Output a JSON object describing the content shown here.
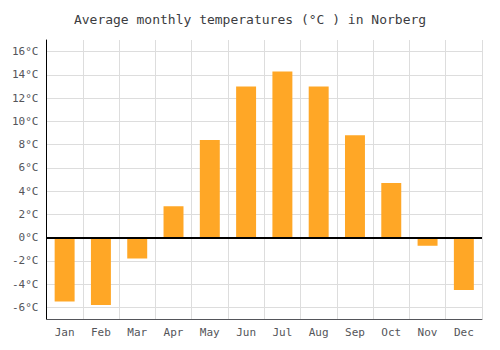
{
  "chart_data": {
    "type": "bar",
    "title": "Average monthly temperatures (°C ) in Norberg",
    "categories": [
      "Jan",
      "Feb",
      "Mar",
      "Apr",
      "May",
      "Jun",
      "Jul",
      "Aug",
      "Sep",
      "Oct",
      "Nov",
      "Dec"
    ],
    "values": [
      -5.5,
      -5.8,
      -1.8,
      2.7,
      8.4,
      13.0,
      14.3,
      13.0,
      8.8,
      4.7,
      -0.7,
      -4.5
    ],
    "color": "#FFA726",
    "ylim": [
      -7,
      17
    ],
    "yticks": [
      {
        "value": -6,
        "label": "-6°C"
      },
      {
        "value": -4,
        "label": "-4°C"
      },
      {
        "value": -2,
        "label": "-2°C"
      },
      {
        "value": 0,
        "label": "0°C"
      },
      {
        "value": 2,
        "label": "2°C"
      },
      {
        "value": 4,
        "label": "4°C"
      },
      {
        "value": 6,
        "label": "6°C"
      },
      {
        "value": 8,
        "label": "8°C"
      },
      {
        "value": 10,
        "label": "10°C"
      },
      {
        "value": 12,
        "label": "12°C"
      },
      {
        "value": 14,
        "label": "14°C"
      },
      {
        "value": 16,
        "label": "16°C"
      }
    ],
    "grid": true
  }
}
